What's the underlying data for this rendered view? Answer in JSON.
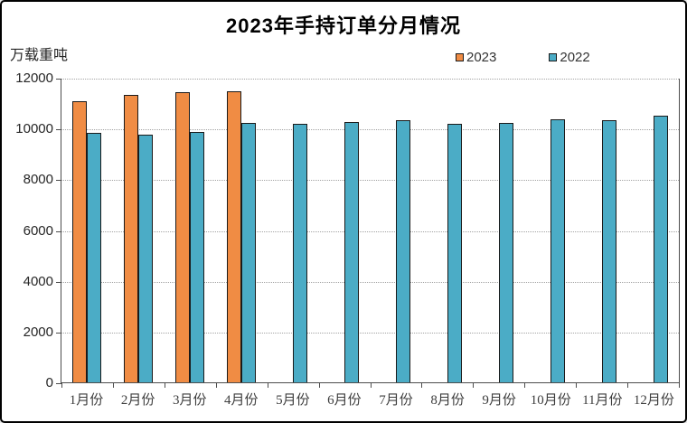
{
  "chart_data": {
    "type": "bar",
    "title": "2023年手持订单分月情况",
    "unit_label": "万载重吨",
    "categories": [
      "1月份",
      "2月份",
      "3月份",
      "4月份",
      "5月份",
      "6月份",
      "7月份",
      "8月份",
      "9月份",
      "10月份",
      "11月份",
      "12月份"
    ],
    "series": [
      {
        "name": "2023",
        "color": "#F08C44",
        "values": [
          11100,
          11350,
          11450,
          11500,
          null,
          null,
          null,
          null,
          null,
          null,
          null,
          null
        ]
      },
      {
        "name": "2022",
        "color": "#4BACC6",
        "values": [
          9850,
          9800,
          9900,
          10250,
          10200,
          10300,
          10350,
          10200,
          10250,
          10400,
          10350,
          10550
        ]
      }
    ],
    "ylim": [
      0,
      12000
    ],
    "yticks": [
      0,
      2000,
      4000,
      6000,
      8000,
      10000,
      12000
    ],
    "xlabel": "",
    "ylabel": "万载重吨",
    "grid": true,
    "legend_position": "top-right",
    "colors": {
      "bar_border": "#1A1A1A",
      "grid_line": "#A3A3A3",
      "axis_line": "#4D4D4D",
      "text": "#262626",
      "background": "#FFFFFF",
      "frame_border": "#000000"
    }
  }
}
